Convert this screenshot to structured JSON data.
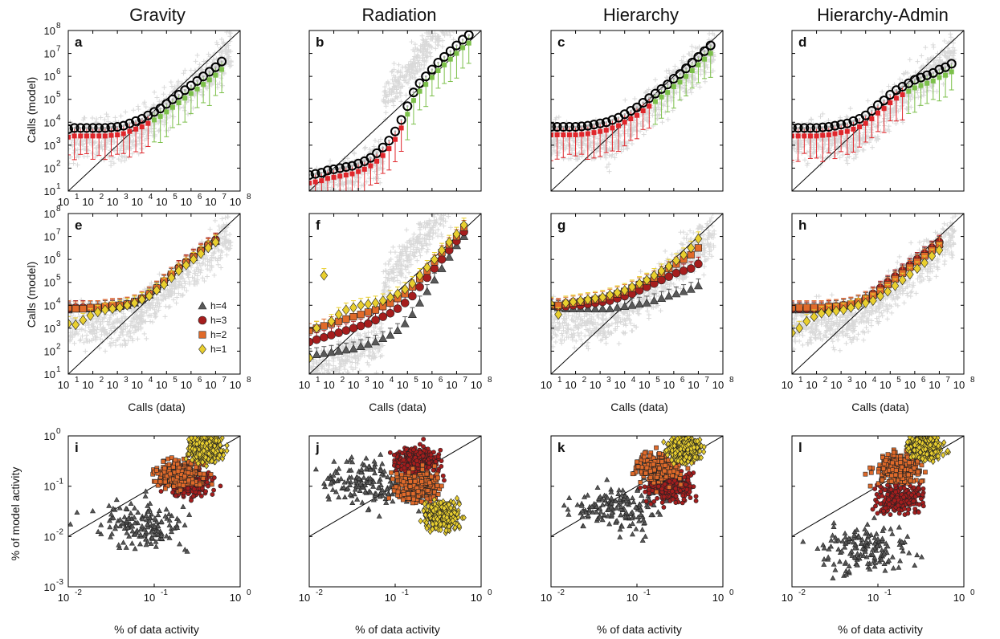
{
  "colors": {
    "cloud": "#d9d9d9",
    "red": "#e0262b",
    "green": "#7cc04a",
    "black_ring": "#000000",
    "h4": "#595959",
    "h3": "#a51d1d",
    "h2": "#e06a2a",
    "h1": "#e9cf2e"
  },
  "column_titles": [
    "Gravity",
    "Radiation",
    "Hierarchy",
    "Hierarchy-Admin"
  ],
  "row_labels": {
    "calls_model": "Calls (model)",
    "calls_data": "Calls (data)",
    "pct_model": "% of model activity",
    "pct_data": "% of data activity"
  },
  "tick_base": "10",
  "legend": [
    {
      "key": "h4",
      "label": "h=4",
      "marker": "triangle"
    },
    {
      "key": "h3",
      "label": "h=3",
      "marker": "circle"
    },
    {
      "key": "h2",
      "label": "h=2",
      "marker": "square"
    },
    {
      "key": "h1",
      "label": "h=1",
      "marker": "diamond"
    }
  ],
  "chart_data": [
    {
      "panel": "a",
      "type": "scatter",
      "column": "Gravity",
      "xlim_log": [
        1,
        8
      ],
      "ylim_log": [
        1,
        8
      ],
      "xticks": [
        "1",
        "2",
        "3",
        "4",
        "5",
        "6",
        "7",
        "8"
      ],
      "yticks": [
        "1",
        "2",
        "3",
        "4",
        "5",
        "6",
        "7",
        "8"
      ],
      "binned": {
        "x_log": [
          1.0,
          1.25,
          1.5,
          1.75,
          2.0,
          2.25,
          2.5,
          2.75,
          3.0,
          3.25,
          3.5,
          3.75,
          4.0,
          4.25,
          4.5,
          4.75,
          5.0,
          5.25,
          5.5,
          5.75,
          6.0,
          6.25,
          6.5,
          6.75,
          7.0,
          7.25
        ],
        "y_log": [
          3.7,
          3.75,
          3.75,
          3.75,
          3.75,
          3.75,
          3.75,
          3.78,
          3.8,
          3.85,
          3.95,
          4.05,
          4.15,
          4.3,
          4.45,
          4.6,
          4.8,
          5.0,
          5.2,
          5.4,
          5.6,
          5.8,
          6.0,
          6.2,
          6.4,
          6.65
        ]
      }
    },
    {
      "panel": "b",
      "type": "scatter",
      "column": "Radiation",
      "xlim_log": [
        1,
        8
      ],
      "ylim_log": [
        1,
        8
      ],
      "xticks": [],
      "yticks": [],
      "binned": {
        "x_log": [
          1.0,
          1.25,
          1.5,
          1.75,
          2.0,
          2.25,
          2.5,
          2.75,
          3.0,
          3.25,
          3.5,
          3.75,
          4.0,
          4.25,
          4.5,
          4.75,
          5.0,
          5.25,
          5.5,
          5.75,
          6.0,
          6.25,
          6.5,
          6.75,
          7.0,
          7.25,
          7.5
        ],
        "y_log": [
          1.7,
          1.75,
          1.8,
          1.9,
          1.95,
          2.0,
          2.05,
          2.1,
          2.2,
          2.3,
          2.45,
          2.65,
          2.9,
          3.2,
          3.6,
          4.1,
          4.7,
          5.3,
          5.7,
          6.0,
          6.3,
          6.6,
          6.85,
          7.1,
          7.35,
          7.6,
          7.8
        ]
      }
    },
    {
      "panel": "c",
      "type": "scatter",
      "column": "Hierarchy",
      "xlim_log": [
        1,
        8
      ],
      "ylim_log": [
        1,
        8
      ],
      "xticks": [],
      "yticks": [],
      "binned": {
        "x_log": [
          1.0,
          1.25,
          1.5,
          1.75,
          2.0,
          2.25,
          2.5,
          2.75,
          3.0,
          3.25,
          3.5,
          3.75,
          4.0,
          4.25,
          4.5,
          4.75,
          5.0,
          5.25,
          5.5,
          5.75,
          6.0,
          6.25,
          6.5,
          6.75,
          7.0,
          7.25,
          7.5
        ],
        "y_log": [
          3.8,
          3.8,
          3.8,
          3.8,
          3.8,
          3.82,
          3.85,
          3.9,
          3.95,
          4.0,
          4.1,
          4.2,
          4.35,
          4.5,
          4.65,
          4.85,
          5.05,
          5.25,
          5.45,
          5.65,
          5.9,
          6.1,
          6.35,
          6.6,
          6.85,
          7.1,
          7.35
        ]
      }
    },
    {
      "panel": "d",
      "type": "scatter",
      "column": "Hierarchy-Admin",
      "xlim_log": [
        1,
        8
      ],
      "ylim_log": [
        1,
        8
      ],
      "xticks": [],
      "yticks": [],
      "binned": {
        "x_log": [
          1.0,
          1.25,
          1.5,
          1.75,
          2.0,
          2.25,
          2.5,
          2.75,
          3.0,
          3.25,
          3.5,
          3.75,
          4.0,
          4.25,
          4.5,
          4.75,
          5.0,
          5.25,
          5.5,
          5.75,
          6.0,
          6.25,
          6.5,
          6.75,
          7.0,
          7.25,
          7.5
        ],
        "y_log": [
          3.75,
          3.75,
          3.75,
          3.75,
          3.75,
          3.78,
          3.8,
          3.85,
          3.9,
          3.95,
          4.05,
          4.15,
          4.3,
          4.5,
          4.75,
          4.95,
          5.2,
          5.4,
          5.55,
          5.7,
          5.85,
          5.95,
          6.05,
          6.15,
          6.3,
          6.4,
          6.55
        ]
      }
    },
    {
      "panel": "e",
      "type": "scatter",
      "column": "Gravity",
      "xlim_log": [
        1,
        8
      ],
      "ylim_log": [
        1,
        8
      ],
      "xticks": [
        "1",
        "2",
        "3",
        "4",
        "5",
        "6",
        "7",
        "8"
      ],
      "yticks": [
        "1",
        "2",
        "3",
        "4",
        "5",
        "6",
        "7",
        "8"
      ],
      "series": [
        {
          "name": "h=4",
          "y_log": [
            3.8,
            3.85,
            3.85,
            3.85,
            3.85,
            3.9,
            3.9,
            3.95,
            4.0,
            4.1,
            4.25,
            4.45,
            4.7,
            5.0,
            5.3,
            5.6,
            5.85,
            6.1,
            6.35,
            6.6,
            6.8
          ]
        },
        {
          "name": "h=3",
          "y_log": [
            3.85,
            3.9,
            3.9,
            3.9,
            3.9,
            3.95,
            3.95,
            4.0,
            4.05,
            4.15,
            4.3,
            4.5,
            4.75,
            5.05,
            5.35,
            5.65,
            5.9,
            6.15,
            6.4,
            6.65,
            6.85
          ]
        },
        {
          "name": "h=2",
          "y_log": [
            3.9,
            3.85,
            3.85,
            3.9,
            3.9,
            3.95,
            4.0,
            4.0,
            4.05,
            4.15,
            4.3,
            4.5,
            4.75,
            5.05,
            5.35,
            5.6,
            5.85,
            6.1,
            6.35,
            6.6,
            6.8
          ]
        },
        {
          "name": "h=1",
          "y_log": [
            3.2,
            3.15,
            3.35,
            3.55,
            3.7,
            3.8,
            3.85,
            3.9,
            4.0,
            4.1,
            4.25,
            4.4,
            4.65,
            4.9,
            5.2,
            5.5,
            5.75,
            6.0,
            6.25,
            6.5,
            6.75
          ]
        }
      ],
      "x_log": [
        1.0,
        1.3,
        1.6,
        1.9,
        2.2,
        2.5,
        2.8,
        3.1,
        3.4,
        3.7,
        4.0,
        4.3,
        4.6,
        4.9,
        5.2,
        5.5,
        5.8,
        6.1,
        6.4,
        6.7,
        7.0
      ]
    },
    {
      "panel": "f",
      "type": "scatter",
      "column": "Radiation",
      "xlim_log": [
        1,
        8
      ],
      "ylim_log": [
        1,
        8
      ],
      "xticks": [
        "1",
        "2",
        "3",
        "4",
        "5",
        "6",
        "7",
        "8"
      ],
      "yticks": [],
      "series": [
        {
          "name": "h=4",
          "y_log": [
            1.8,
            1.85,
            1.9,
            1.95,
            2.0,
            2.05,
            2.1,
            2.2,
            2.3,
            2.4,
            2.55,
            2.7,
            2.9,
            3.2,
            3.6,
            4.1,
            4.6,
            5.1,
            5.6,
            6.1,
            6.6,
            7.0
          ]
        },
        {
          "name": "h=3",
          "y_log": [
            2.4,
            2.5,
            2.6,
            2.7,
            2.8,
            2.9,
            3.0,
            3.1,
            3.2,
            3.35,
            3.5,
            3.65,
            3.85,
            4.1,
            4.4,
            4.8,
            5.2,
            5.6,
            6.0,
            6.4,
            6.8,
            7.2
          ]
        },
        {
          "name": "h=2",
          "y_log": [
            2.9,
            3.0,
            3.1,
            3.2,
            3.3,
            3.4,
            3.5,
            3.6,
            3.7,
            3.8,
            3.95,
            4.1,
            4.3,
            4.5,
            4.8,
            5.15,
            5.5,
            5.9,
            6.3,
            6.65,
            7.0,
            7.4
          ]
        },
        {
          "name": "h=1",
          "y_log": [
            1.7,
            3.0,
            5.3,
            3.3,
            3.6,
            3.8,
            3.9,
            4.0,
            4.05,
            4.1,
            4.2,
            4.35,
            4.5,
            4.7,
            4.95,
            5.3,
            5.65,
            6.0,
            6.4,
            6.75,
            7.1,
            7.5
          ]
        }
      ],
      "x_log": [
        1.0,
        1.3,
        1.6,
        1.9,
        2.2,
        2.5,
        2.8,
        3.1,
        3.4,
        3.7,
        4.0,
        4.3,
        4.6,
        4.9,
        5.2,
        5.5,
        5.8,
        6.1,
        6.4,
        6.7,
        7.0,
        7.3
      ]
    },
    {
      "panel": "g",
      "type": "scatter",
      "column": "Hierarchy",
      "xlim_log": [
        1,
        8
      ],
      "ylim_log": [
        1,
        8
      ],
      "xticks": [
        "1",
        "2",
        "3",
        "4",
        "5",
        "6",
        "7",
        "8"
      ],
      "yticks": [],
      "series": [
        {
          "name": "h=4",
          "y_log": [
            3.95,
            3.9,
            3.85,
            3.85,
            3.85,
            3.85,
            3.85,
            3.85,
            3.85,
            3.9,
            3.95,
            4.0,
            4.05,
            4.1,
            4.2,
            4.3,
            4.4,
            4.5,
            4.6,
            4.7,
            4.85
          ]
        },
        {
          "name": "h=3",
          "y_log": [
            4.0,
            3.95,
            3.95,
            4.0,
            4.0,
            4.05,
            4.1,
            4.15,
            4.2,
            4.3,
            4.4,
            4.5,
            4.65,
            4.8,
            4.95,
            5.1,
            5.25,
            5.4,
            5.5,
            5.6,
            5.8
          ]
        },
        {
          "name": "h=2",
          "y_log": [
            4.0,
            4.0,
            4.05,
            4.1,
            4.15,
            4.2,
            4.25,
            4.3,
            4.4,
            4.5,
            4.6,
            4.75,
            4.9,
            5.05,
            5.2,
            5.4,
            5.6,
            5.8,
            6.0,
            6.2,
            6.5
          ]
        },
        {
          "name": "h=1",
          "y_log": [
            4.05,
            3.6,
            4.1,
            4.15,
            4.2,
            4.25,
            4.3,
            4.35,
            4.45,
            4.55,
            4.65,
            4.8,
            4.95,
            5.1,
            5.3,
            5.5,
            5.7,
            5.95,
            6.2,
            6.5,
            6.9
          ]
        }
      ],
      "x_log": [
        1.0,
        1.3,
        1.6,
        1.9,
        2.2,
        2.5,
        2.8,
        3.1,
        3.4,
        3.7,
        4.0,
        4.3,
        4.6,
        4.9,
        5.2,
        5.5,
        5.8,
        6.1,
        6.4,
        6.7,
        7.0
      ]
    },
    {
      "panel": "h",
      "type": "scatter",
      "column": "Hierarchy-Admin",
      "xlim_log": [
        1,
        8
      ],
      "ylim_log": [
        1,
        8
      ],
      "xticks": [
        "1",
        "2",
        "3",
        "4",
        "5",
        "6",
        "7",
        "8"
      ],
      "yticks": [],
      "series": [
        {
          "name": "h=4",
          "y_log": [
            3.8,
            3.8,
            3.8,
            3.8,
            3.8,
            3.85,
            3.9,
            3.95,
            4.0,
            4.1,
            4.25,
            4.45,
            4.7,
            4.95,
            5.2,
            5.45,
            5.7,
            5.95,
            6.2,
            6.45,
            6.7
          ]
        },
        {
          "name": "h=3",
          "y_log": [
            3.85,
            3.85,
            3.85,
            3.85,
            3.85,
            3.9,
            3.95,
            4.0,
            4.05,
            4.15,
            4.3,
            4.5,
            4.75,
            5.0,
            5.25,
            5.5,
            5.75,
            6.0,
            6.25,
            6.5,
            6.75
          ]
        },
        {
          "name": "h=2",
          "y_log": [
            3.9,
            3.9,
            3.9,
            3.9,
            3.9,
            3.95,
            3.95,
            4.0,
            4.05,
            4.15,
            4.3,
            4.45,
            4.65,
            4.9,
            5.15,
            5.4,
            5.65,
            5.9,
            6.15,
            6.4,
            6.65
          ]
        },
        {
          "name": "h=1",
          "y_log": [
            2.8,
            3.0,
            3.3,
            3.5,
            3.65,
            3.7,
            3.75,
            3.8,
            3.9,
            4.0,
            4.1,
            4.2,
            4.4,
            4.6,
            4.85,
            5.1,
            5.35,
            5.6,
            5.85,
            6.15,
            6.4
          ]
        }
      ],
      "x_log": [
        1.0,
        1.3,
        1.6,
        1.9,
        2.2,
        2.5,
        2.8,
        3.1,
        3.4,
        3.7,
        4.0,
        4.3,
        4.6,
        4.9,
        5.2,
        5.5,
        5.8,
        6.1,
        6.4,
        6.7,
        7.0
      ]
    },
    {
      "panel": "i",
      "type": "scatter",
      "column": "Gravity",
      "xlim_log": [
        -2,
        0
      ],
      "ylim_log": [
        -3,
        0
      ],
      "xticks": [
        "-2",
        "-1",
        "0"
      ],
      "yticks": [
        "-3",
        "-2",
        "-1",
        "0"
      ],
      "clusters": {
        "h4": [
          -1.15,
          -1.8
        ],
        "h3": [
          -0.6,
          -0.9
        ],
        "h2": [
          -0.7,
          -0.75
        ],
        "h1": [
          -0.4,
          -0.25
        ]
      }
    },
    {
      "panel": "j",
      "type": "scatter",
      "column": "Radiation",
      "xlim_log": [
        -2,
        0
      ],
      "ylim_log": [
        -3,
        0
      ],
      "xticks": [
        "-2",
        "-1",
        "0"
      ],
      "yticks": [],
      "clusters": {
        "h4": [
          -1.3,
          -0.9
        ],
        "h3": [
          -0.75,
          -0.5
        ],
        "h2": [
          -0.75,
          -1.0
        ],
        "h1": [
          -0.45,
          -1.6
        ]
      }
    },
    {
      "panel": "k",
      "type": "scatter",
      "column": "Hierarchy",
      "xlim_log": [
        -2,
        0
      ],
      "ylim_log": [
        -3,
        0
      ],
      "xticks": [
        "-2",
        "-1",
        "0"
      ],
      "yticks": [],
      "clusters": {
        "h4": [
          -1.2,
          -1.45
        ],
        "h3": [
          -0.6,
          -1.0
        ],
        "h2": [
          -0.75,
          -0.65
        ],
        "h1": [
          -0.45,
          -0.25
        ]
      }
    },
    {
      "panel": "l",
      "type": "scatter",
      "column": "Hierarchy-Admin",
      "xlim_log": [
        -2,
        0
      ],
      "ylim_log": [
        -3,
        0
      ],
      "xticks": [
        "-2",
        "-1",
        "0"
      ],
      "yticks": [],
      "clusters": {
        "h4": [
          -1.15,
          -2.25
        ],
        "h3": [
          -0.75,
          -1.25
        ],
        "h2": [
          -0.75,
          -0.65
        ],
        "h1": [
          -0.45,
          -0.2
        ]
      }
    }
  ]
}
